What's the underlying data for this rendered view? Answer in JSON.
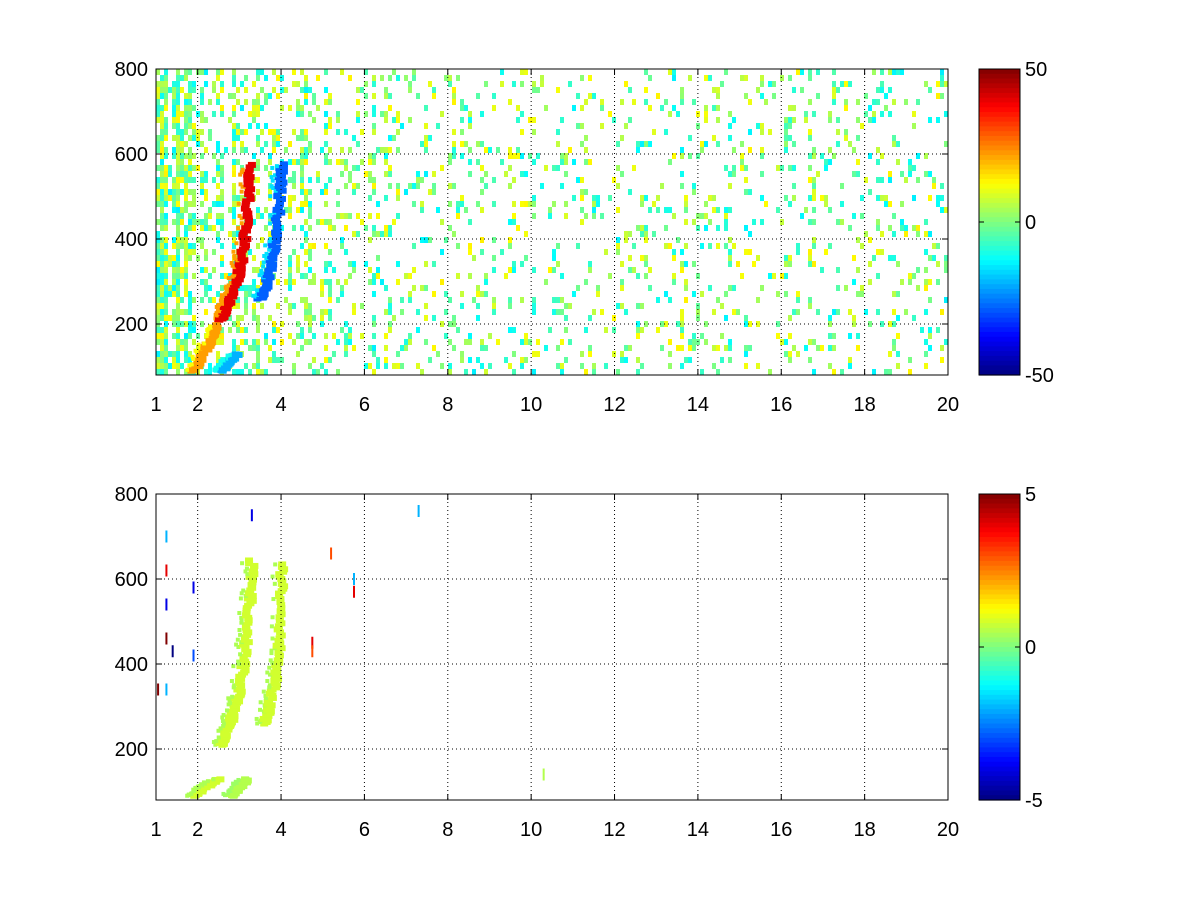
{
  "chart_data": [
    {
      "type": "heatmap",
      "title": "",
      "xlabel": "",
      "ylabel": "",
      "x_ticks": [
        "1",
        "2",
        "4",
        "6",
        "8",
        "10",
        "12",
        "14",
        "16",
        "18",
        "20"
      ],
      "y_ticks": [
        "200",
        "400",
        "600",
        "800"
      ],
      "xlim": [
        1,
        20
      ],
      "ylim": [
        80,
        800
      ],
      "grid": true,
      "colorbar": {
        "colormap": "jet",
        "range": [
          -50,
          50
        ],
        "tick_labels": [
          "50",
          "0",
          "-50"
        ]
      },
      "features": [
        {
          "name": "",
          "value": 40,
          "points": [
            [
              2.55,
              210
            ],
            [
              2.65,
              230
            ],
            [
              2.8,
              265
            ],
            [
              2.95,
              305
            ],
            [
              3.05,
              350
            ],
            [
              3.15,
              420
            ],
            [
              3.22,
              500
            ],
            [
              3.27,
              580
            ]
          ]
        },
        {
          "name": "",
          "value": 22,
          "points": [
            [
              1.9,
              90
            ],
            [
              2.1,
              120
            ],
            [
              2.3,
              160
            ],
            [
              2.5,
              200
            ]
          ]
        },
        {
          "name": "",
          "value": -28,
          "points": [
            [
              3.5,
              260
            ],
            [
              3.65,
              290
            ],
            [
              3.8,
              360
            ],
            [
              3.9,
              430
            ],
            [
              4.0,
              520
            ],
            [
              4.02,
              580
            ]
          ]
        },
        {
          "name": "",
          "value": -20,
          "points": [
            [
              2.6,
              90
            ],
            [
              2.75,
              110
            ],
            [
              2.95,
              130
            ]
          ]
        }
      ],
      "noise_density": 0.32
    },
    {
      "type": "heatmap",
      "title": "",
      "xlabel": "",
      "ylabel": "",
      "x_ticks": [
        "1",
        "2",
        "4",
        "6",
        "8",
        "10",
        "12",
        "14",
        "16",
        "18",
        "20"
      ],
      "y_ticks": [
        "200",
        "400",
        "600",
        "800"
      ],
      "xlim": [
        1,
        20
      ],
      "ylim": [
        80,
        800
      ],
      "grid": true,
      "colorbar": {
        "colormap": "jet",
        "range": [
          -5,
          5
        ],
        "tick_labels": [
          "5",
          "0",
          "-5"
        ]
      },
      "features": [
        {
          "name": "",
          "value": 0.8,
          "points": [
            [
              2.55,
              210
            ],
            [
              2.7,
              240
            ],
            [
              2.85,
              280
            ],
            [
              3.0,
              330
            ],
            [
              3.1,
              400
            ],
            [
              3.2,
              480
            ],
            [
              3.27,
              560
            ],
            [
              3.3,
              650
            ]
          ]
        },
        {
          "name": "",
          "value": 0.8,
          "points": [
            [
              3.6,
              260
            ],
            [
              3.75,
              310
            ],
            [
              3.9,
              380
            ],
            [
              3.98,
              460
            ],
            [
              4.02,
              560
            ],
            [
              4.03,
              640
            ]
          ]
        },
        {
          "name": "",
          "value": 0.8,
          "points": [
            [
              1.95,
              90
            ],
            [
              2.2,
              110
            ],
            [
              2.5,
              130
            ]
          ]
        },
        {
          "name": "",
          "value": 0.5,
          "points": [
            [
              2.8,
              90
            ],
            [
              3.0,
              110
            ],
            [
              3.2,
              130
            ]
          ]
        }
      ],
      "spikes": [
        {
          "x": 1.25,
          "y": 700,
          "value": -2
        },
        {
          "x": 1.25,
          "y": 620,
          "value": 4
        },
        {
          "x": 1.25,
          "y": 540,
          "value": -4
        },
        {
          "x": 1.25,
          "y": 460,
          "value": 5
        },
        {
          "x": 1.25,
          "y": 340,
          "value": -2
        },
        {
          "x": 1.4,
          "y": 430,
          "value": -5
        },
        {
          "x": 1.05,
          "y": 340,
          "value": 5
        },
        {
          "x": 1.9,
          "y": 420,
          "value": -3
        },
        {
          "x": 1.9,
          "y": 580,
          "value": -4
        },
        {
          "x": 3.3,
          "y": 750,
          "value": -4
        },
        {
          "x": 4.75,
          "y": 450,
          "value": 4
        },
        {
          "x": 4.75,
          "y": 430,
          "value": 3
        },
        {
          "x": 5.2,
          "y": 660,
          "value": 3
        },
        {
          "x": 5.75,
          "y": 600,
          "value": -2
        },
        {
          "x": 5.75,
          "y": 570,
          "value": 4
        },
        {
          "x": 7.3,
          "y": 760,
          "value": -2
        },
        {
          "x": 10.3,
          "y": 140,
          "value": 0.5
        }
      ]
    }
  ]
}
